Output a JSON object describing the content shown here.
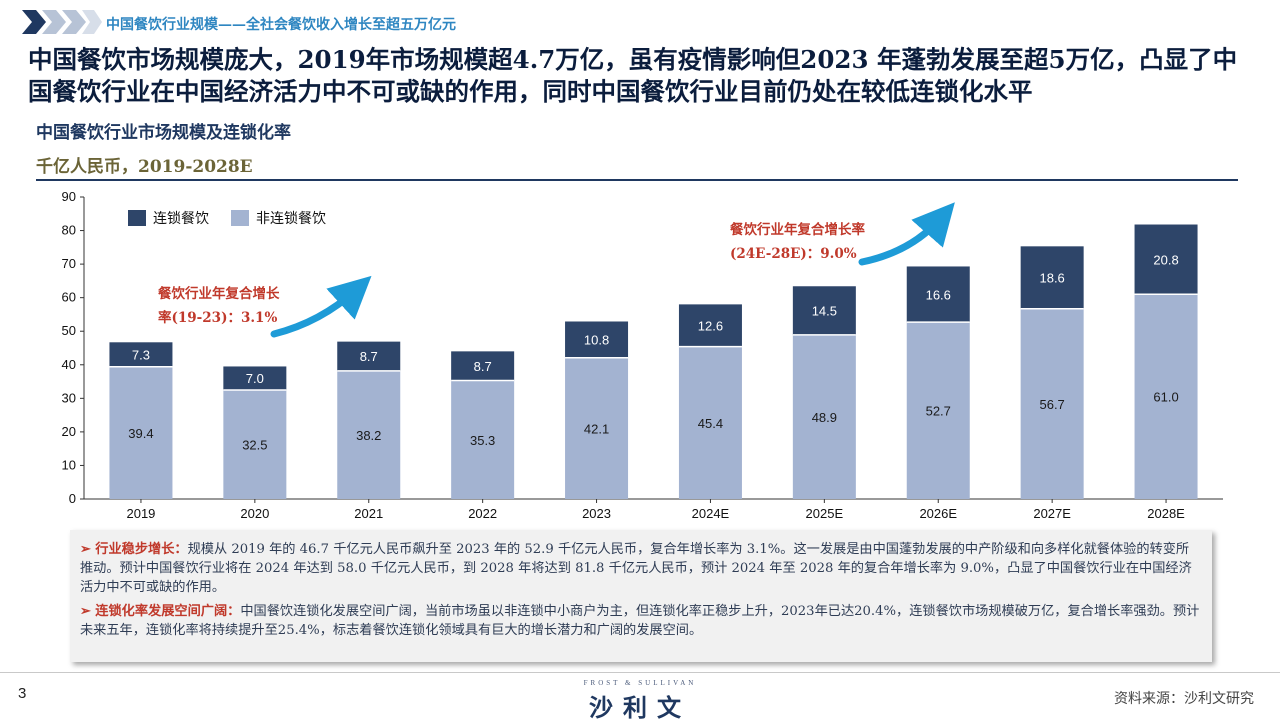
{
  "header": {
    "breadcrumb": "中国餐饮行业规模——全社会餐饮收入增长至超五万亿元",
    "headline": "中国餐饮市场规模庞大，2019年市场规模超4.7万亿，虽有疫情影响但2023 年蓬勃发展至超5万亿，凸显了中国餐饮行业在中国经济活力中不可或缺的作用，同时中国餐饮行业目前仍处在较低连锁化水平",
    "chart_title": "中国餐饮行业市场规模及连锁化率",
    "chart_subtitle": "千亿人民币，2019-2028E"
  },
  "chart_data": {
    "type": "bar",
    "stacked": true,
    "categories": [
      "2019",
      "2020",
      "2021",
      "2022",
      "2023",
      "2024E",
      "2025E",
      "2026E",
      "2027E",
      "2028E"
    ],
    "series": [
      {
        "name": "非连锁餐饮",
        "color": "#a3b3d1",
        "values": [
          39.4,
          32.5,
          38.2,
          35.3,
          42.1,
          45.4,
          48.9,
          52.7,
          56.7,
          61.0
        ]
      },
      {
        "name": "连锁餐饮",
        "color": "#2e4569",
        "values": [
          7.3,
          7.0,
          8.7,
          8.7,
          10.8,
          12.6,
          14.5,
          16.6,
          18.6,
          20.8
        ]
      }
    ],
    "ylim": [
      0,
      90
    ],
    "yticks": [
      0,
      10,
      20,
      30,
      40,
      50,
      60,
      70,
      80,
      90
    ],
    "legend_position": "top-left",
    "annotations": [
      {
        "text_line1": "餐饮行业年复合增长",
        "text_line2": "率(19-23)：3.1%",
        "color": "#c0392b"
      },
      {
        "text_line1": "餐饮行业年复合增长率",
        "text_line2": "(24E-28E)：9.0%",
        "color": "#c0392b"
      }
    ],
    "arrow_color": "#1e9bd7"
  },
  "notes": [
    {
      "lead": "行业稳步增长：",
      "text": "规模从 2019 年的 46.7 千亿元人民币飙升至 2023 年的 52.9 千亿元人民币，复合年增长率为 3.1%。这一发展是由中国蓬勃发展的中产阶级和向多样化就餐体验的转变所推动。预计中国餐饮行业将在 2024 年达到 58.0 千亿元人民币，到 2028 年将达到 81.8 千亿元人民币，预计 2024 年至 2028 年的复合年增长率为 9.0%，凸显了中国餐饮行业在中国经济活力中不可或缺的作用。"
    },
    {
      "lead": "连锁化率发展空间广阔：",
      "text": "中国餐饮连锁化发展空间广阔，当前市场虽以非连锁中小商户为主，但连锁化率正稳步上升，2023年已达20.4%，连锁餐饮市场规模破万亿，复合增长率强劲。预计未来五年，连锁化率将持续提升至25.4%，标志着餐饮连锁化领域具有巨大的增长潜力和广阔的发展空间。"
    }
  ],
  "footer": {
    "page_number": "3",
    "logo_en": "FROST & SULLIVAN",
    "logo_cn": "沙利文",
    "source": "资料来源：沙利文研究"
  }
}
